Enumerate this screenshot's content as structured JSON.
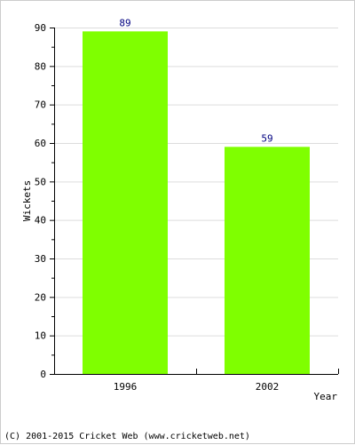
{
  "chart_data": {
    "type": "bar",
    "categories": [
      "1996",
      "2002"
    ],
    "values": [
      89,
      59
    ],
    "value_labels": [
      "89",
      "59"
    ],
    "title": "",
    "xlabel": "Year",
    "ylabel": "Wickets",
    "ylim": [
      0,
      90
    ],
    "yticks": [
      0,
      10,
      20,
      30,
      40,
      50,
      60,
      70,
      80,
      90
    ],
    "ytick_labels": [
      "0",
      "10",
      "20",
      "30",
      "40",
      "50",
      "60",
      "70",
      "80",
      "90"
    ],
    "grid": true,
    "legend": "none",
    "colors": {
      "bar": "#7fff00",
      "value_label": "#000080",
      "grid": "#dddddd",
      "axis": "#000000"
    }
  },
  "footer": {
    "copyright": "(C) 2001-2015 Cricket Web (www.cricketweb.net)"
  }
}
